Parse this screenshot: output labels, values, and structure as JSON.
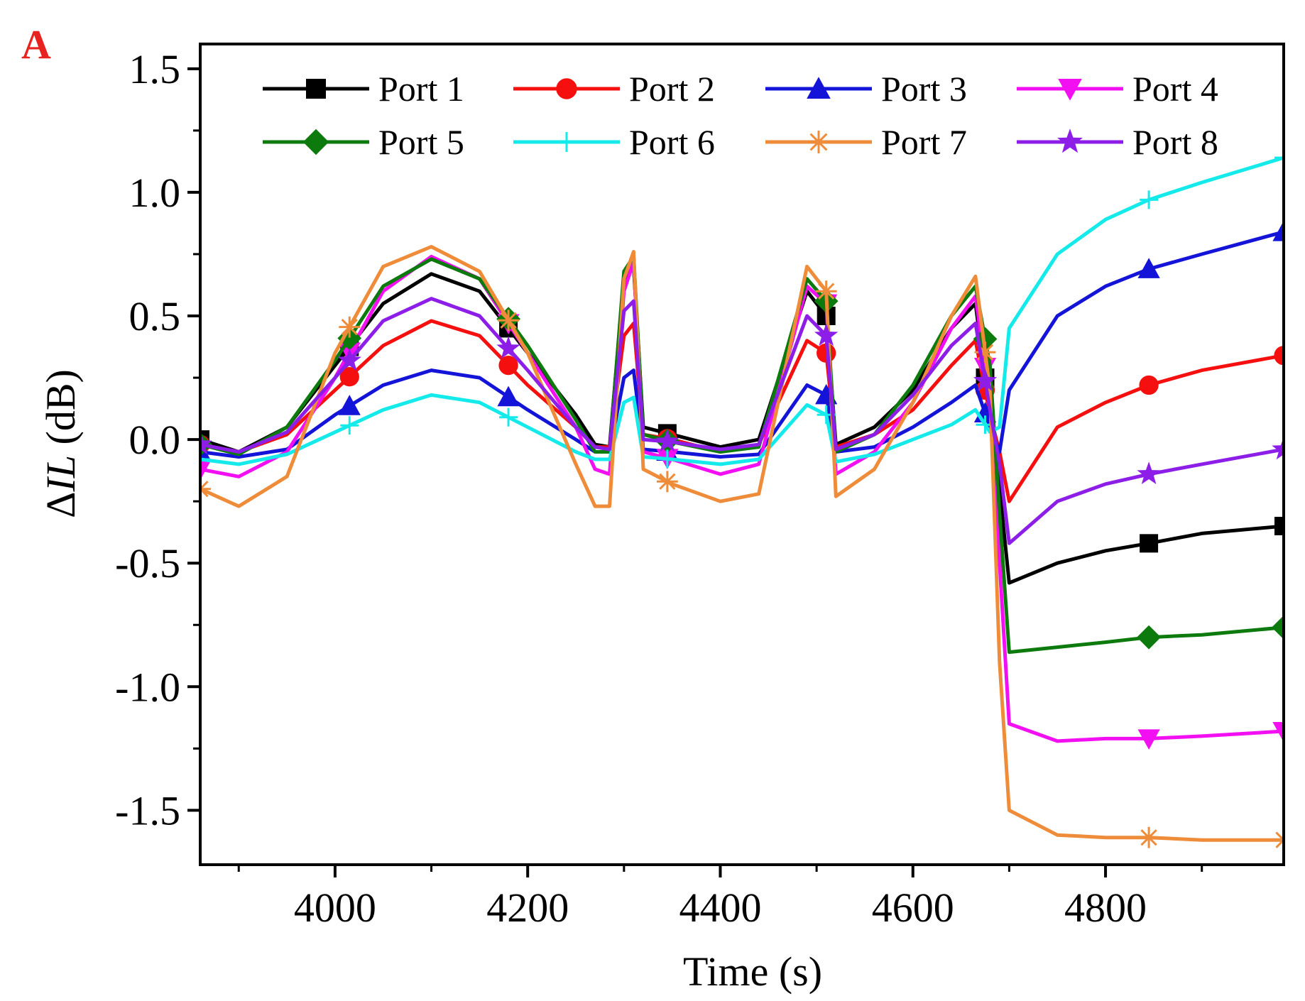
{
  "panel_label": "A",
  "chart_data": {
    "type": "line",
    "title": "",
    "xlabel": "Time (s)",
    "ylabel": "ΔIL (dB)",
    "ylabel_parts": {
      "delta": "Δ",
      "symbol": "IL",
      "unit": " (dB)"
    },
    "xlim": [
      3860,
      4985
    ],
    "ylim": [
      -1.72,
      1.6
    ],
    "xticks": [
      4000,
      4200,
      4400,
      4600,
      4800
    ],
    "xtick_labels": [
      "4000",
      "4200",
      "4400",
      "4600",
      "4800"
    ],
    "yticks": [
      1.5,
      1.0,
      0.5,
      0.0,
      -0.5,
      -1.0,
      -1.5
    ],
    "ytick_labels": [
      "1.5",
      "1.0",
      "0.5",
      "0.0",
      "-0.5",
      "-1.0",
      "-1.5"
    ],
    "grid": false,
    "legend_position": "top",
    "series": [
      {
        "name": "Port 1",
        "color": "#000000",
        "marker": "square",
        "x": [
          3860,
          3900,
          3950,
          4000,
          4050,
          4100,
          4150,
          4200,
          4250,
          4270,
          4285,
          4300,
          4310,
          4320,
          4350,
          4400,
          4440,
          4490,
          4510,
          4520,
          4560,
          4600,
          4640,
          4665,
          4680,
          4690,
          4700,
          4750,
          4800,
          4845,
          4900,
          4985
        ],
        "y": [
          0.0,
          -0.05,
          0.05,
          0.3,
          0.55,
          0.67,
          0.6,
          0.35,
          0.1,
          -0.02,
          -0.03,
          0.65,
          0.7,
          0.05,
          0.02,
          -0.03,
          0.0,
          0.6,
          0.5,
          -0.02,
          0.05,
          0.2,
          0.45,
          0.55,
          0.1,
          -0.2,
          -0.58,
          -0.5,
          -0.45,
          -0.42,
          -0.38,
          -0.35
        ]
      },
      {
        "name": "Port 2",
        "color": "#f50f0f",
        "marker": "circle",
        "x": [
          3860,
          3900,
          3950,
          4000,
          4050,
          4100,
          4150,
          4200,
          4250,
          4270,
          4285,
          4300,
          4310,
          4320,
          4350,
          4400,
          4440,
          4490,
          4510,
          4520,
          4560,
          4600,
          4640,
          4665,
          4680,
          4690,
          4700,
          4750,
          4800,
          4845,
          4900,
          4985
        ],
        "y": [
          -0.02,
          -0.05,
          0.02,
          0.2,
          0.38,
          0.48,
          0.42,
          0.22,
          0.05,
          -0.03,
          -0.03,
          0.42,
          0.47,
          0.02,
          0.0,
          -0.05,
          -0.02,
          0.4,
          0.35,
          -0.03,
          0.02,
          0.12,
          0.3,
          0.4,
          0.1,
          -0.05,
          -0.25,
          0.05,
          0.15,
          0.22,
          0.28,
          0.34
        ]
      },
      {
        "name": "Port 3",
        "color": "#1414d9",
        "marker": "triangle",
        "x": [
          3860,
          3900,
          3950,
          4000,
          4050,
          4100,
          4150,
          4200,
          4250,
          4270,
          4285,
          4300,
          4310,
          4320,
          4350,
          4400,
          4440,
          4490,
          4510,
          4520,
          4560,
          4600,
          4640,
          4665,
          4680,
          4690,
          4700,
          4750,
          4800,
          4845,
          4900,
          4985
        ],
        "y": [
          -0.05,
          -0.07,
          -0.04,
          0.1,
          0.22,
          0.28,
          0.25,
          0.12,
          0.0,
          -0.05,
          -0.05,
          0.25,
          0.28,
          -0.04,
          -0.05,
          -0.07,
          -0.06,
          0.22,
          0.18,
          -0.05,
          -0.03,
          0.05,
          0.15,
          0.22,
          0.05,
          -0.05,
          0.2,
          0.5,
          0.62,
          0.69,
          0.75,
          0.84
        ]
      },
      {
        "name": "Port 4",
        "color": "#f20ff2",
        "marker": "triangle-down",
        "x": [
          3860,
          3900,
          3950,
          4000,
          4050,
          4100,
          4150,
          4200,
          4250,
          4270,
          4285,
          4300,
          4310,
          4320,
          4350,
          4400,
          4440,
          4490,
          4510,
          4520,
          4560,
          4600,
          4640,
          4665,
          4680,
          4690,
          4700,
          4750,
          4800,
          4845,
          4900,
          4985
        ],
        "y": [
          -0.12,
          -0.15,
          -0.05,
          0.25,
          0.6,
          0.74,
          0.65,
          0.35,
          0.05,
          -0.12,
          -0.14,
          0.6,
          0.72,
          -0.05,
          -0.08,
          -0.14,
          -0.1,
          0.62,
          0.55,
          -0.14,
          -0.05,
          0.15,
          0.45,
          0.58,
          0.15,
          -0.5,
          -1.15,
          -1.22,
          -1.21,
          -1.21,
          -1.2,
          -1.18
        ]
      },
      {
        "name": "Port 5",
        "color": "#0d7a0d",
        "marker": "diamond",
        "x": [
          3860,
          3900,
          3950,
          4000,
          4050,
          4100,
          4150,
          4200,
          4250,
          4270,
          4285,
          4300,
          4310,
          4320,
          4350,
          4400,
          4440,
          4490,
          4510,
          4520,
          4560,
          4600,
          4640,
          4665,
          4680,
          4690,
          4700,
          4750,
          4800,
          4845,
          4900,
          4985
        ],
        "y": [
          -0.02,
          -0.06,
          0.05,
          0.32,
          0.62,
          0.73,
          0.65,
          0.38,
          0.08,
          -0.05,
          -0.05,
          0.68,
          0.74,
          0.02,
          -0.01,
          -0.05,
          -0.03,
          0.65,
          0.56,
          -0.05,
          0.02,
          0.22,
          0.5,
          0.62,
          0.3,
          -0.3,
          -0.86,
          -0.84,
          -0.82,
          -0.8,
          -0.79,
          -0.76
        ]
      },
      {
        "name": "Port 6",
        "color": "#14eaea",
        "marker": "plus",
        "x": [
          3860,
          3900,
          3950,
          4000,
          4050,
          4100,
          4150,
          4200,
          4250,
          4270,
          4285,
          4300,
          4310,
          4320,
          4350,
          4400,
          4440,
          4490,
          4510,
          4520,
          4560,
          4600,
          4640,
          4665,
          4680,
          4690,
          4700,
          4750,
          4800,
          4845,
          4900,
          4985
        ],
        "y": [
          -0.08,
          -0.1,
          -0.06,
          0.03,
          0.12,
          0.18,
          0.15,
          0.05,
          -0.05,
          -0.08,
          -0.08,
          0.15,
          0.17,
          -0.07,
          -0.08,
          -0.1,
          -0.08,
          0.14,
          0.1,
          -0.09,
          -0.06,
          0.0,
          0.06,
          0.12,
          0.03,
          0.05,
          0.45,
          0.75,
          0.89,
          0.97,
          1.04,
          1.14
        ]
      },
      {
        "name": "Port 7",
        "color": "#ee8c3a",
        "marker": "asterisk",
        "x": [
          3860,
          3900,
          3950,
          4000,
          4050,
          4100,
          4150,
          4200,
          4250,
          4270,
          4285,
          4300,
          4310,
          4320,
          4350,
          4400,
          4440,
          4490,
          4510,
          4520,
          4560,
          4600,
          4640,
          4665,
          4680,
          4690,
          4700,
          4750,
          4800,
          4845,
          4900,
          4985
        ],
        "y": [
          -0.2,
          -0.27,
          -0.15,
          0.35,
          0.7,
          0.78,
          0.68,
          0.35,
          -0.1,
          -0.27,
          -0.27,
          0.65,
          0.76,
          -0.12,
          -0.18,
          -0.25,
          -0.22,
          0.7,
          0.6,
          -0.23,
          -0.12,
          0.15,
          0.5,
          0.66,
          0.2,
          -0.9,
          -1.5,
          -1.6,
          -1.61,
          -1.61,
          -1.62,
          -1.62
        ]
      },
      {
        "name": "Port 8",
        "color": "#8c1ee8",
        "marker": "star",
        "x": [
          3860,
          3900,
          3950,
          4000,
          4050,
          4100,
          4150,
          4200,
          4250,
          4270,
          4285,
          4300,
          4310,
          4320,
          4350,
          4400,
          4440,
          4490,
          4510,
          4520,
          4560,
          4600,
          4640,
          4665,
          4680,
          4690,
          4700,
          4750,
          4800,
          4845,
          4900,
          4985
        ],
        "y": [
          -0.02,
          -0.05,
          0.03,
          0.25,
          0.48,
          0.57,
          0.5,
          0.28,
          0.05,
          -0.03,
          -0.04,
          0.52,
          0.56,
          0.0,
          -0.01,
          -0.04,
          -0.02,
          0.5,
          0.42,
          -0.04,
          0.02,
          0.18,
          0.38,
          0.47,
          0.12,
          -0.1,
          -0.42,
          -0.25,
          -0.18,
          -0.14,
          -0.1,
          -0.04
        ]
      }
    ]
  }
}
